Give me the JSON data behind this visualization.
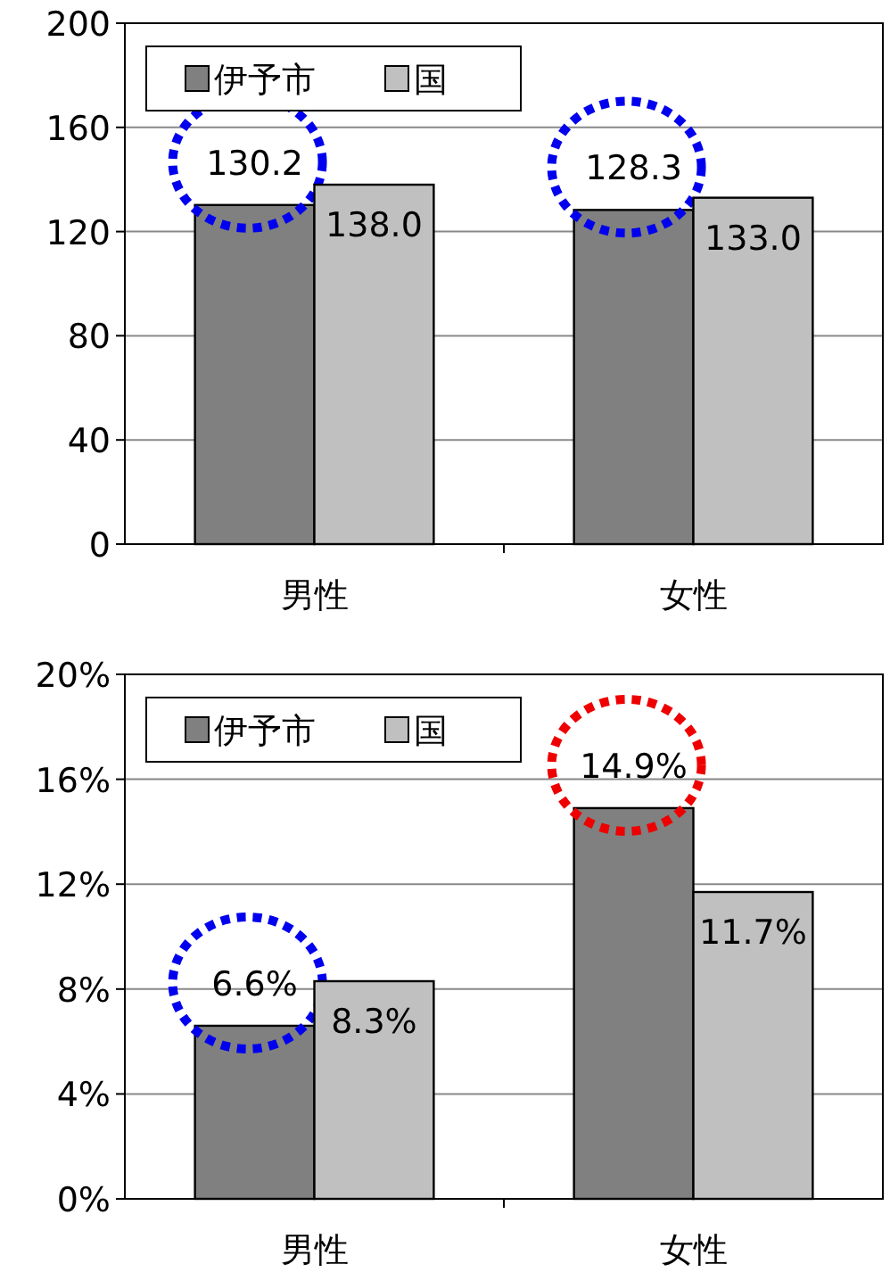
{
  "chart_data": [
    {
      "type": "bar",
      "categories": [
        "男性",
        "女性"
      ],
      "series": [
        {
          "name": "伊予市",
          "color": "#808080",
          "values": [
            130.2,
            128.3
          ],
          "value_labels": [
            "130.2",
            "128.3"
          ]
        },
        {
          "name": "国",
          "color": "#c0c0c0",
          "values": [
            138.0,
            133.0
          ],
          "value_labels": [
            "138.0",
            "133.0"
          ]
        }
      ],
      "ylim": [
        0,
        200
      ],
      "yticks": [
        0,
        40,
        80,
        120,
        160,
        200
      ],
      "grid": "y",
      "legend": "top left"
    },
    {
      "type": "bar",
      "categories": [
        "男性",
        "女性"
      ],
      "series": [
        {
          "name": "伊予市",
          "color": "#808080",
          "values": [
            6.6,
            14.9
          ],
          "value_labels": [
            "6.6%",
            "14.9%"
          ]
        },
        {
          "name": "国",
          "color": "#c0c0c0",
          "values": [
            8.3,
            11.7
          ],
          "value_labels": [
            "8.3%",
            "11.7%"
          ]
        }
      ],
      "ylim": [
        0,
        20
      ],
      "yticks": [
        {
          "value": 0,
          "label": "0%"
        },
        {
          "value": 4,
          "label": "4%"
        },
        {
          "value": 8,
          "label": "8%"
        },
        {
          "value": 12,
          "label": "12%"
        },
        {
          "value": 16,
          "label": "16%"
        },
        {
          "value": 20,
          "label": "20%"
        }
      ],
      "grid": "y",
      "legend": "top left"
    }
  ]
}
